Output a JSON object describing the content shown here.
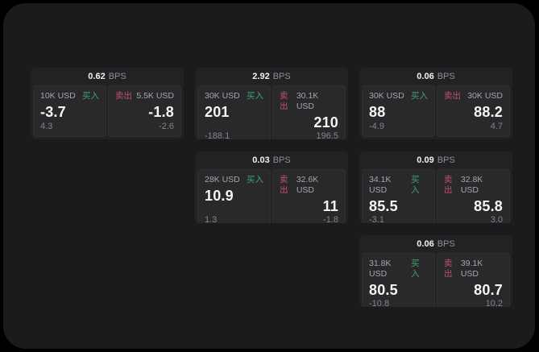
{
  "colors": {
    "buy_green": "#3fa56c",
    "sell_red": "#c4506a",
    "window_bg": "#1b1b1d",
    "card_bg": "#222225",
    "panel_bg": "#29292c"
  },
  "labels": {
    "buy": "买入",
    "sell": "卖出",
    "bps": "BPS"
  },
  "cards": [
    {
      "row": 1,
      "col": 1,
      "bps": "0.62",
      "buy": {
        "amount": "10K USD",
        "value": "-3.7",
        "delta": "4.3"
      },
      "sell": {
        "amount": "5.5K USD",
        "value": "-1.8",
        "delta": "-2.6"
      }
    },
    {
      "row": 1,
      "col": 2,
      "bps": "2.92",
      "buy": {
        "amount": "30K USD",
        "value": "201",
        "delta": "-188.1"
      },
      "sell": {
        "amount": "30.1K USD",
        "value": "210",
        "delta": "196.5"
      }
    },
    {
      "row": 1,
      "col": 3,
      "bps": "0.06",
      "buy": {
        "amount": "30K USD",
        "value": "88",
        "delta": "-4.9"
      },
      "sell": {
        "amount": "30K USD",
        "value": "88.2",
        "delta": "4.7"
      }
    },
    {
      "row": 2,
      "col": 2,
      "bps": "0.03",
      "buy": {
        "amount": "28K USD",
        "value": "10.9",
        "delta": "1.3"
      },
      "sell": {
        "amount": "32.6K USD",
        "value": "11",
        "delta": "-1.8"
      }
    },
    {
      "row": 2,
      "col": 3,
      "bps": "0.09",
      "buy": {
        "amount": "34.1K USD",
        "value": "85.5",
        "delta": "-3.1"
      },
      "sell": {
        "amount": "32.8K USD",
        "value": "85.8",
        "delta": "3.0"
      }
    },
    {
      "row": 3,
      "col": 3,
      "bps": "0.06",
      "buy": {
        "amount": "31.8K USD",
        "value": "80.5",
        "delta": "-10.8"
      },
      "sell": {
        "amount": "39.1K USD",
        "value": "80.7",
        "delta": "10.2"
      }
    }
  ]
}
